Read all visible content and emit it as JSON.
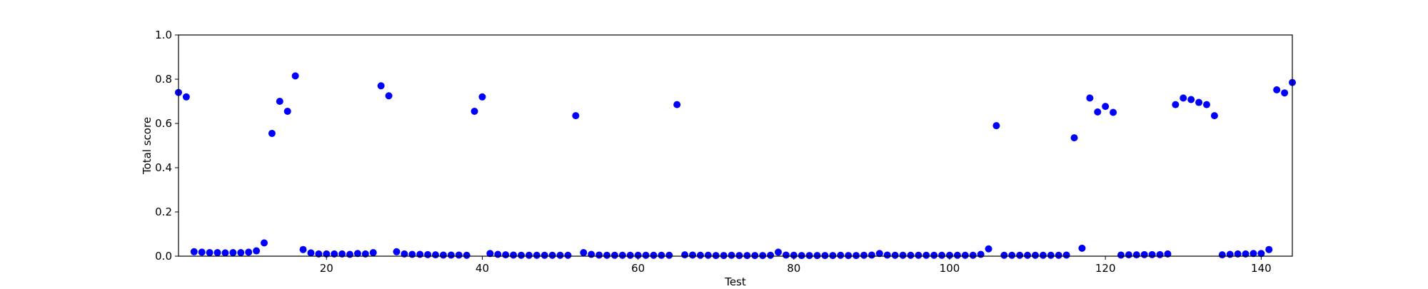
{
  "chart_data": {
    "type": "scatter",
    "title": "",
    "xlabel": "Test",
    "ylabel": "Total score",
    "xlim": [
      1,
      144
    ],
    "ylim": [
      0.0,
      1.0
    ],
    "xticks": [
      20,
      40,
      60,
      80,
      100,
      120,
      140
    ],
    "xtick_labels": [
      "20",
      "40",
      "60",
      "80",
      "100",
      "120",
      "140"
    ],
    "yticks": [
      0.0,
      0.2,
      0.4,
      0.6,
      0.8,
      1.0
    ],
    "ytick_labels": [
      "0.0",
      "0.2",
      "0.4",
      "0.6",
      "0.8",
      "1.0"
    ],
    "grid": false,
    "legend": "none",
    "marker_color": "#0000ff",
    "series": [
      {
        "x": [
          1,
          2,
          3,
          4,
          5,
          6,
          7,
          8,
          9,
          10,
          11,
          12,
          13,
          14,
          15,
          16,
          17,
          18,
          19,
          20,
          21,
          22,
          23,
          24,
          25,
          26,
          27,
          28,
          29,
          30,
          31,
          32,
          33,
          34,
          35,
          36,
          37,
          38,
          39,
          40,
          41,
          42,
          43,
          44,
          45,
          46,
          47,
          48,
          49,
          50,
          51,
          52,
          53,
          54,
          55,
          56,
          57,
          58,
          59,
          60,
          61,
          62,
          63,
          64,
          65,
          66,
          67,
          68,
          69,
          70,
          71,
          72,
          73,
          74,
          75,
          76,
          77,
          78,
          79,
          80,
          81,
          82,
          83,
          84,
          85,
          86,
          87,
          88,
          89,
          90,
          91,
          92,
          93,
          94,
          95,
          96,
          97,
          98,
          99,
          100,
          101,
          102,
          103,
          104,
          105,
          106,
          107,
          108,
          109,
          110,
          111,
          112,
          113,
          114,
          115,
          116,
          117,
          118,
          119,
          120,
          121,
          122,
          123,
          124,
          125,
          126,
          127,
          128,
          129,
          130,
          131,
          132,
          133,
          134,
          135,
          136,
          137,
          138,
          139,
          140,
          141,
          142,
          143,
          144
        ],
        "y": [
          0.74,
          0.72,
          0.02,
          0.018,
          0.016,
          0.016,
          0.015,
          0.016,
          0.016,
          0.018,
          0.024,
          0.06,
          0.555,
          0.7,
          0.655,
          0.815,
          0.03,
          0.015,
          0.01,
          0.01,
          0.01,
          0.01,
          0.008,
          0.012,
          0.01,
          0.016,
          0.77,
          0.725,
          0.02,
          0.01,
          0.008,
          0.008,
          0.007,
          0.006,
          0.005,
          0.005,
          0.005,
          0.004,
          0.655,
          0.72,
          0.012,
          0.008,
          0.006,
          0.005,
          0.004,
          0.004,
          0.004,
          0.004,
          0.004,
          0.004,
          0.004,
          0.635,
          0.016,
          0.008,
          0.005,
          0.004,
          0.004,
          0.004,
          0.004,
          0.004,
          0.004,
          0.004,
          0.004,
          0.004,
          0.685,
          0.006,
          0.005,
          0.004,
          0.004,
          0.003,
          0.003,
          0.004,
          0.003,
          0.003,
          0.003,
          0.003,
          0.004,
          0.018,
          0.005,
          0.004,
          0.003,
          0.003,
          0.003,
          0.003,
          0.003,
          0.004,
          0.003,
          0.003,
          0.004,
          0.005,
          0.012,
          0.005,
          0.004,
          0.004,
          0.004,
          0.004,
          0.004,
          0.004,
          0.004,
          0.004,
          0.004,
          0.004,
          0.004,
          0.008,
          0.033,
          0.59,
          0.004,
          0.004,
          0.004,
          0.004,
          0.004,
          0.004,
          0.004,
          0.004,
          0.005,
          0.535,
          0.036,
          0.715,
          0.652,
          0.677,
          0.65,
          0.005,
          0.006,
          0.006,
          0.007,
          0.007,
          0.007,
          0.01,
          0.685,
          0.715,
          0.708,
          0.695,
          0.685,
          0.635,
          0.006,
          0.008,
          0.01,
          0.01,
          0.012,
          0.012,
          0.03,
          0.752,
          0.738,
          0.785
        ]
      }
    ]
  }
}
